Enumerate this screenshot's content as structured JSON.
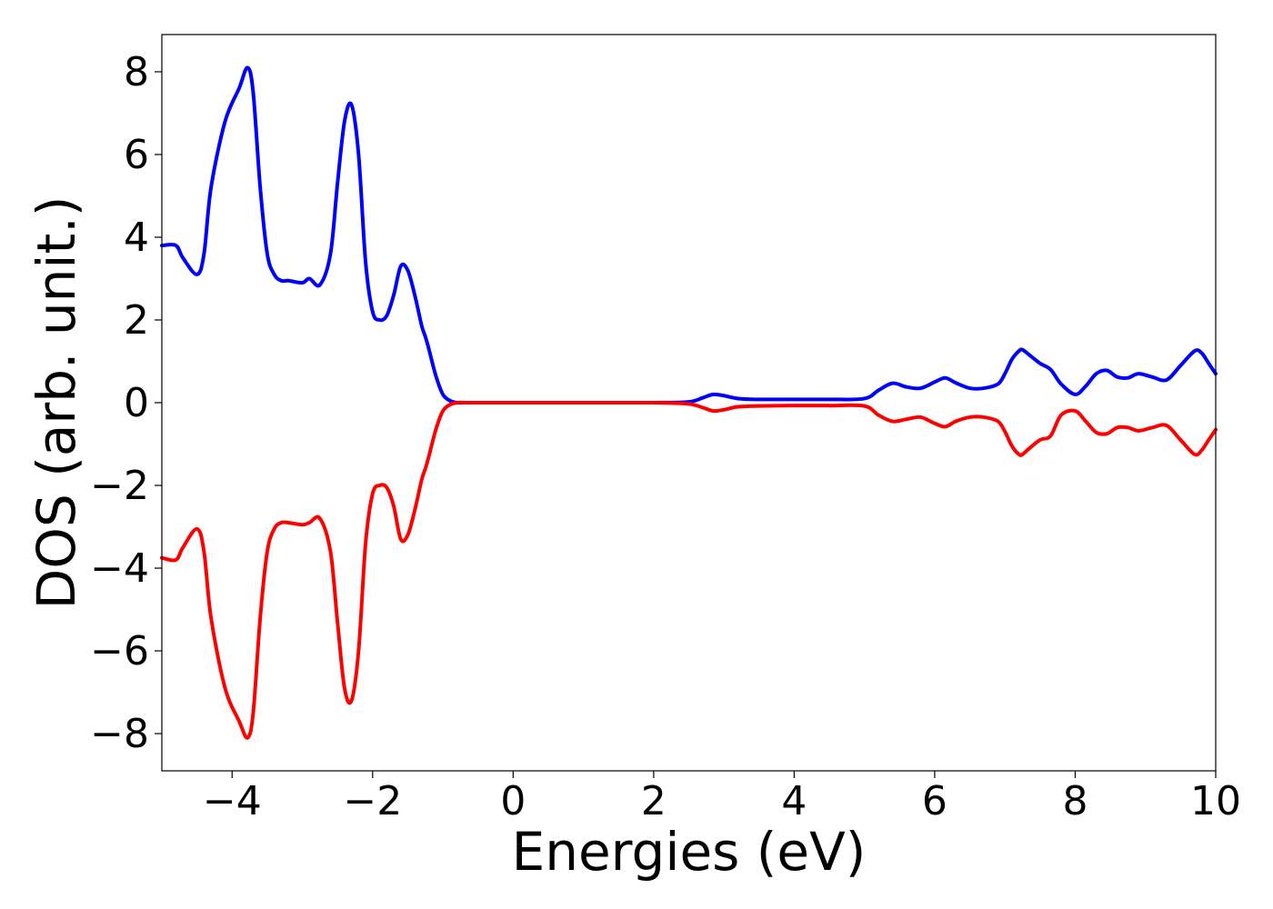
{
  "chart_data": {
    "type": "line",
    "title": "",
    "xlabel": "Energies (eV)",
    "ylabel": "DOS (arb. unit.)",
    "xlim": [
      -5,
      10
    ],
    "ylim": [
      -8.9,
      8.9
    ],
    "grid": false,
    "legend": "none",
    "xticks": [
      -4,
      -2,
      0,
      2,
      4,
      6,
      8,
      10
    ],
    "xtick_labels": [
      "−4",
      "−2",
      "0",
      "2",
      "4",
      "6",
      "8",
      "10"
    ],
    "yticks": [
      8,
      6,
      4,
      2,
      0,
      -2,
      -4,
      -6,
      -8
    ],
    "ytick_labels": [
      "8",
      "6",
      "4",
      "2",
      "0",
      "−2",
      "−4",
      "−6",
      "−8"
    ],
    "series": [
      {
        "color": "#0000ff",
        "x": [
          -5.0,
          -4.8,
          -4.7,
          -4.5,
          -4.4,
          -4.3,
          -4.1,
          -3.9,
          -3.78,
          -3.7,
          -3.6,
          -3.5,
          -3.4,
          -3.3,
          -3.2,
          -3.0,
          -2.9,
          -2.75,
          -2.6,
          -2.5,
          -2.4,
          -2.3,
          -2.2,
          -2.1,
          -2.0,
          -1.9,
          -1.8,
          -1.7,
          -1.6,
          -1.5,
          -1.4,
          -1.3,
          -1.25,
          -1.2,
          -1.1,
          -1.0,
          -0.9,
          -0.8,
          -0.7,
          -0.6,
          -0.5,
          0.0,
          1.0,
          2.0,
          2.5,
          2.7,
          2.85,
          3.0,
          3.2,
          3.5,
          4.0,
          4.5,
          5.0,
          5.2,
          5.4,
          5.6,
          5.8,
          6.0,
          6.15,
          6.3,
          6.5,
          6.7,
          6.9,
          7.0,
          7.1,
          7.2,
          7.25,
          7.35,
          7.5,
          7.65,
          7.8,
          8.0,
          8.15,
          8.3,
          8.45,
          8.6,
          8.75,
          8.9,
          9.1,
          9.3,
          9.5,
          9.7,
          9.8,
          9.9,
          10.0
        ],
        "values": [
          3.8,
          3.8,
          3.5,
          3.1,
          3.6,
          5.2,
          6.8,
          7.6,
          8.1,
          7.5,
          5.2,
          3.6,
          3.1,
          2.95,
          2.95,
          2.9,
          3.0,
          2.85,
          3.6,
          5.3,
          6.8,
          7.2,
          6.0,
          3.4,
          2.2,
          2.0,
          2.1,
          2.6,
          3.3,
          3.2,
          2.6,
          1.85,
          1.6,
          1.3,
          0.65,
          0.2,
          0.05,
          0.0,
          0.0,
          0.0,
          0.0,
          0.0,
          0.0,
          0.0,
          0.02,
          0.12,
          0.2,
          0.17,
          0.1,
          0.08,
          0.08,
          0.08,
          0.1,
          0.3,
          0.47,
          0.38,
          0.35,
          0.5,
          0.6,
          0.48,
          0.35,
          0.35,
          0.45,
          0.7,
          1.05,
          1.25,
          1.28,
          1.15,
          0.95,
          0.8,
          0.45,
          0.2,
          0.4,
          0.7,
          0.78,
          0.62,
          0.6,
          0.7,
          0.62,
          0.55,
          0.9,
          1.25,
          1.2,
          0.95,
          0.7
        ]
      },
      {
        "color": "#ff0000",
        "x": [
          -5.0,
          -4.8,
          -4.7,
          -4.5,
          -4.4,
          -4.3,
          -4.1,
          -3.9,
          -3.78,
          -3.7,
          -3.6,
          -3.5,
          -3.4,
          -3.3,
          -3.2,
          -3.0,
          -2.9,
          -2.75,
          -2.6,
          -2.5,
          -2.4,
          -2.3,
          -2.2,
          -2.1,
          -2.0,
          -1.9,
          -1.8,
          -1.7,
          -1.6,
          -1.5,
          -1.4,
          -1.3,
          -1.25,
          -1.2,
          -1.1,
          -1.0,
          -0.9,
          -0.8,
          -0.7,
          -0.6,
          -0.5,
          0.0,
          1.0,
          2.0,
          2.5,
          2.7,
          2.85,
          3.0,
          3.2,
          3.5,
          4.0,
          4.5,
          5.0,
          5.2,
          5.4,
          5.6,
          5.8,
          6.0,
          6.15,
          6.3,
          6.5,
          6.7,
          6.9,
          7.0,
          7.1,
          7.2,
          7.25,
          7.35,
          7.5,
          7.65,
          7.8,
          8.0,
          8.15,
          8.3,
          8.45,
          8.6,
          8.75,
          8.9,
          9.1,
          9.3,
          9.5,
          9.7,
          9.8,
          9.9,
          10.0
        ],
        "values": [
          -3.75,
          -3.8,
          -3.5,
          -3.05,
          -3.6,
          -5.2,
          -6.9,
          -7.7,
          -8.1,
          -7.5,
          -5.2,
          -3.6,
          -3.05,
          -2.9,
          -2.9,
          -2.95,
          -2.9,
          -2.8,
          -3.6,
          -5.3,
          -6.9,
          -7.2,
          -6.0,
          -3.4,
          -2.2,
          -2.0,
          -2.05,
          -2.5,
          -3.3,
          -3.2,
          -2.6,
          -1.85,
          -1.6,
          -1.3,
          -0.65,
          -0.2,
          -0.05,
          0.0,
          0.0,
          0.0,
          0.0,
          0.0,
          0.0,
          0.0,
          -0.03,
          -0.12,
          -0.2,
          -0.17,
          -0.1,
          -0.08,
          -0.07,
          -0.07,
          -0.08,
          -0.3,
          -0.45,
          -0.4,
          -0.35,
          -0.5,
          -0.58,
          -0.45,
          -0.35,
          -0.35,
          -0.45,
          -0.7,
          -1.05,
          -1.25,
          -1.25,
          -1.1,
          -0.9,
          -0.8,
          -0.3,
          -0.2,
          -0.45,
          -0.72,
          -0.75,
          -0.6,
          -0.6,
          -0.68,
          -0.6,
          -0.55,
          -0.9,
          -1.25,
          -1.15,
          -0.9,
          -0.65
        ]
      }
    ]
  }
}
